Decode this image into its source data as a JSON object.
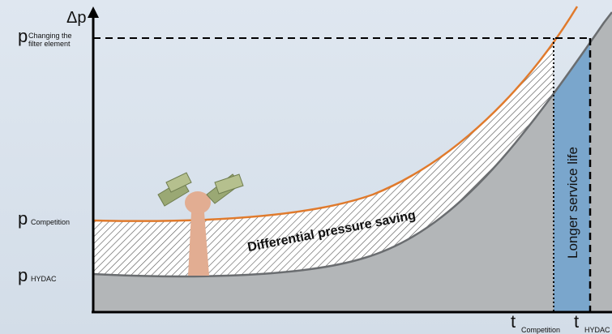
{
  "y_axis": {
    "label": "Δp",
    "ticks": [
      {
        "symbol": "p",
        "subscript": [
          "Changing the",
          "filter element"
        ]
      },
      {
        "symbol": "p",
        "subscript": [
          "Competition"
        ]
      },
      {
        "symbol": "p",
        "subscript": [
          "HYDAC"
        ]
      }
    ]
  },
  "x_axis": {
    "ticks": [
      {
        "symbol": "t",
        "subscript": [
          "Competition"
        ]
      },
      {
        "symbol": "t",
        "subscript": [
          "HYDAC"
        ]
      }
    ]
  },
  "annotations": {
    "saving": "Differential pressure saving",
    "service_life": "Longer service life"
  }
}
